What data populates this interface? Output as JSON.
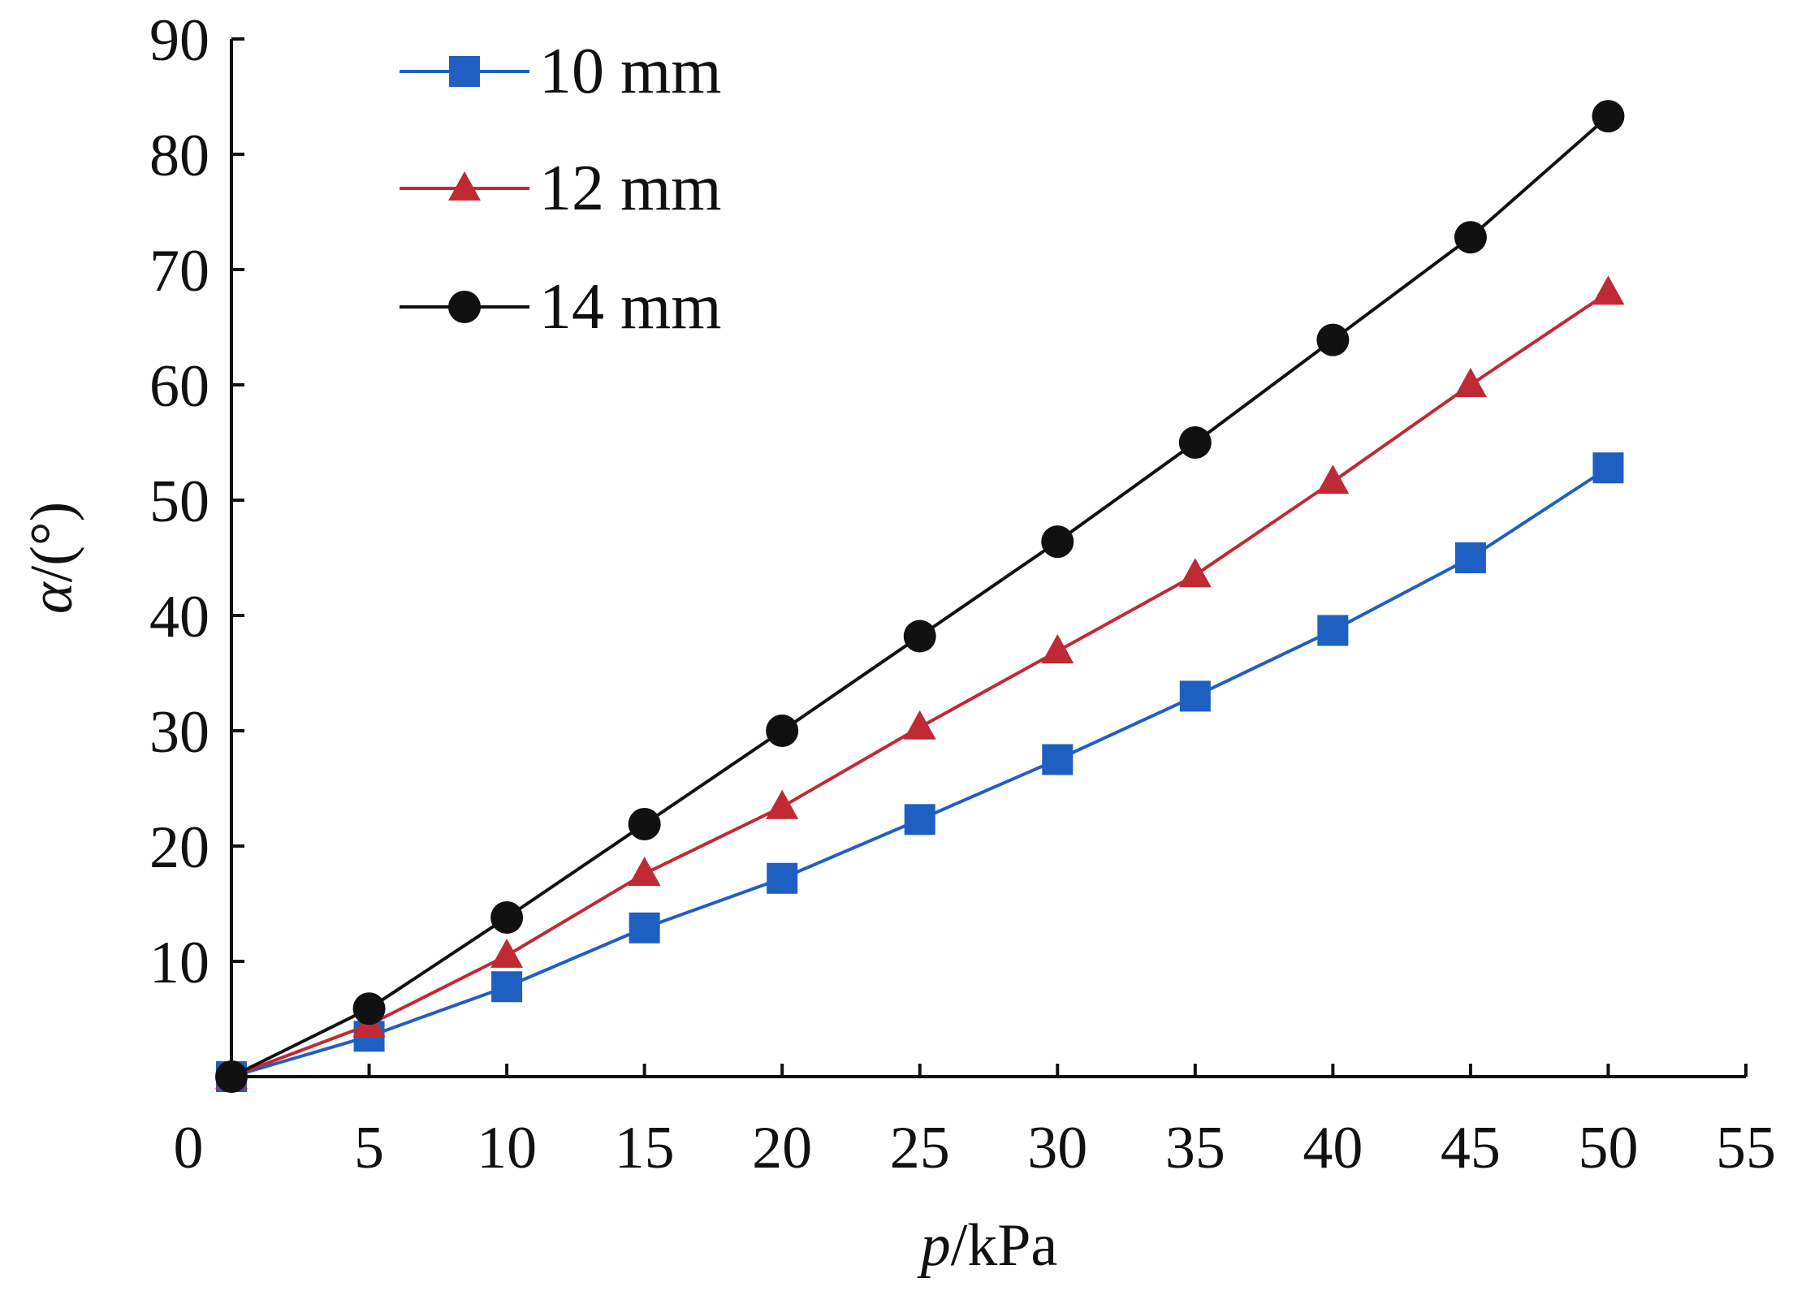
{
  "chart_data": {
    "type": "line",
    "title": "",
    "xlabel": {
      "var": "p",
      "unit": "/kPa"
    },
    "ylabel": {
      "var": "α",
      "unit": "/(°)"
    },
    "xlim": [
      0,
      55
    ],
    "ylim": [
      0,
      90
    ],
    "x_ticks": [
      "0",
      "5",
      "10",
      "15",
      "20",
      "25",
      "30",
      "35",
      "40",
      "45",
      "50",
      "55"
    ],
    "y_ticks": [
      "10",
      "20",
      "30",
      "40",
      "50",
      "60",
      "70",
      "80",
      "90"
    ],
    "grid": false,
    "legend_position": "top-left",
    "x": [
      0,
      5,
      10,
      15,
      20,
      25,
      30,
      35,
      40,
      45,
      50
    ],
    "series": [
      {
        "name": "10 mm",
        "marker": "square",
        "color": "#1f5fc1",
        "values": [
          0,
          3.5,
          7.8,
          12.9,
          17.2,
          22.3,
          27.5,
          33.0,
          38.7,
          45.0,
          52.8
        ]
      },
      {
        "name": "12 mm",
        "marker": "triangle",
        "color": "#c02a35",
        "values": [
          0,
          4.5,
          10.5,
          17.6,
          23.4,
          30.3,
          36.9,
          43.5,
          51.6,
          60.0,
          68.0
        ]
      },
      {
        "name": "14 mm",
        "marker": "circle",
        "color": "#111111",
        "values": [
          0,
          5.9,
          13.8,
          21.9,
          30.0,
          38.2,
          46.4,
          55.0,
          63.9,
          72.8,
          83.3
        ]
      }
    ]
  }
}
